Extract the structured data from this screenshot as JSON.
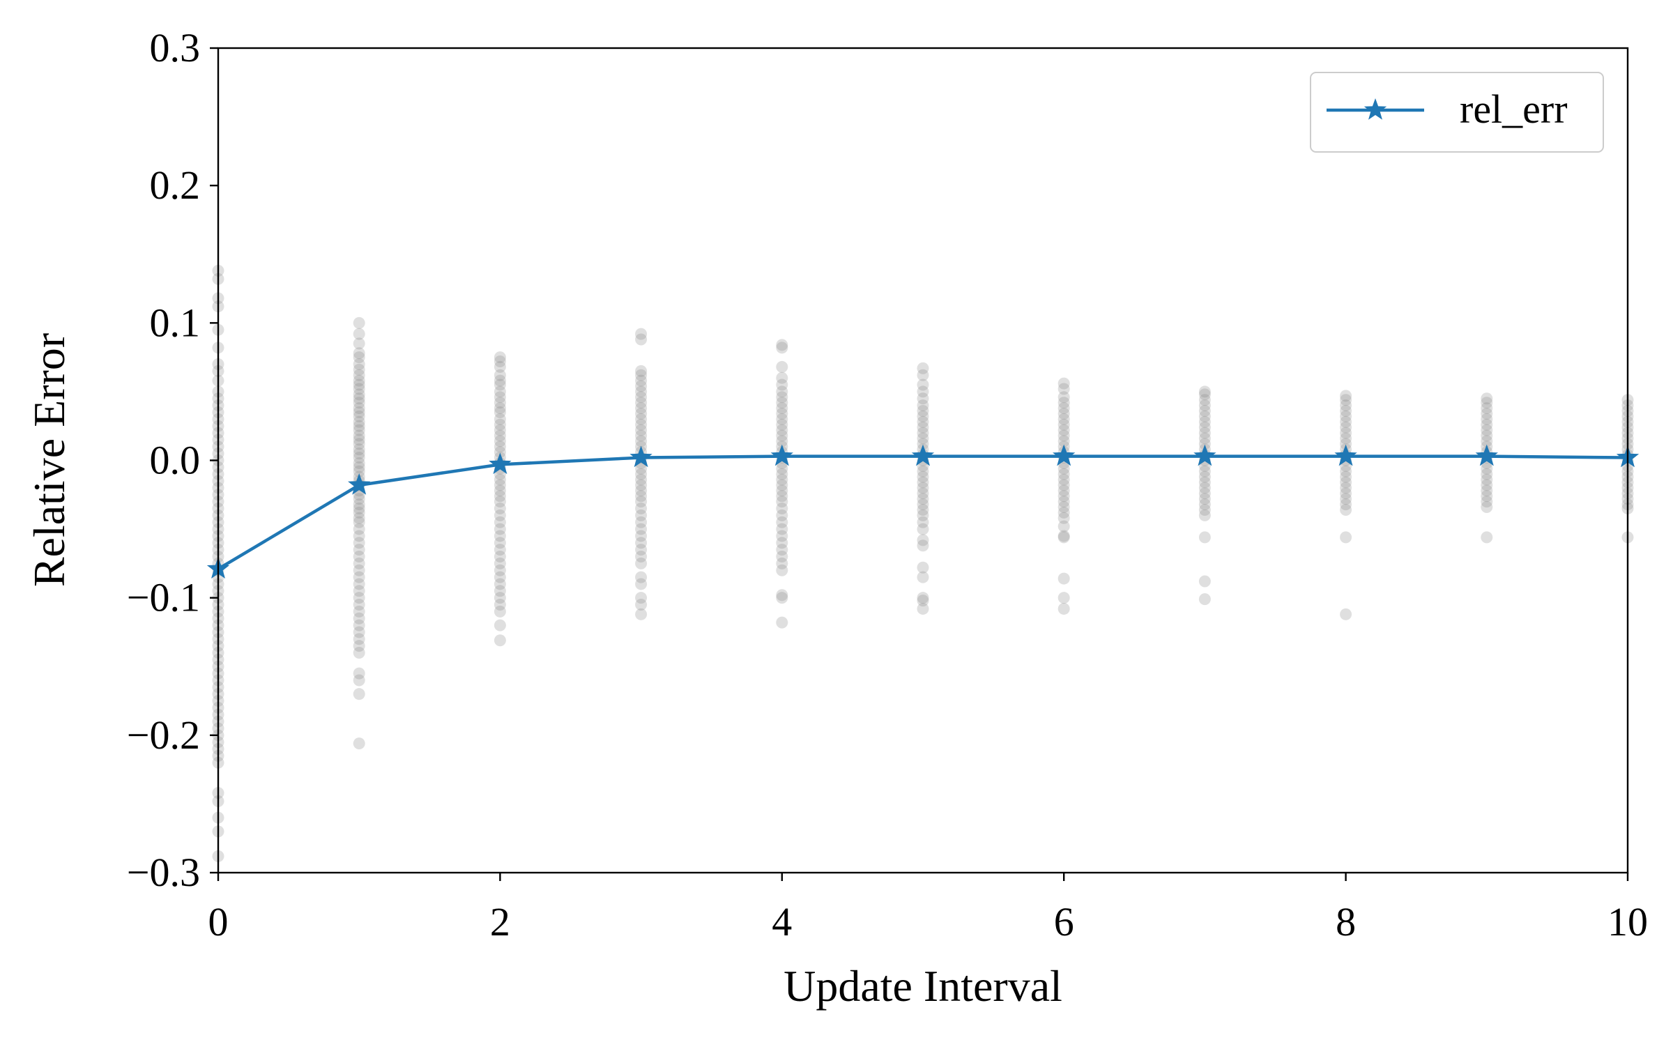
{
  "chart_data": {
    "type": "line",
    "title": "",
    "xlabel": "Update Interval",
    "ylabel": "Relative Error",
    "xlim": [
      0,
      10
    ],
    "ylim": [
      -0.3,
      0.3
    ],
    "xticks": [
      0,
      2,
      4,
      6,
      8,
      10
    ],
    "xtick_labels": [
      "0",
      "2",
      "4",
      "6",
      "8",
      "10"
    ],
    "yticks": [
      -0.3,
      -0.2,
      -0.1,
      0.0,
      0.1,
      0.2,
      0.3
    ],
    "ytick_labels": [
      "−0.3",
      "−0.2",
      "−0.1",
      "0.0",
      "0.1",
      "0.2",
      "0.3"
    ],
    "grid": false,
    "legend_position": "top-right",
    "series": [
      {
        "name": "rel_err",
        "marker": "star",
        "color": "#1f77b4",
        "x": [
          0,
          1,
          2,
          3,
          4,
          5,
          6,
          7,
          8,
          9,
          10
        ],
        "y": [
          -0.079,
          -0.018,
          -0.003,
          0.002,
          0.003,
          0.003,
          0.003,
          0.003,
          0.003,
          0.003,
          0.002
        ]
      }
    ],
    "scatter_samples": {
      "color": "#808080",
      "opacity": 0.25,
      "groups": [
        {
          "x": 0,
          "y": [
            0.138,
            0.132,
            0.118,
            0.112,
            0.095,
            0.082,
            0.07,
            0.065,
            0.058,
            0.05,
            0.045,
            0.04,
            0.035,
            0.03,
            0.025,
            0.02,
            0.015,
            0.01,
            0.005,
            0.0,
            -0.005,
            -0.01,
            -0.015,
            -0.02,
            -0.025,
            -0.03,
            -0.035,
            -0.04,
            -0.045,
            -0.05,
            -0.055,
            -0.06,
            -0.065,
            -0.07,
            -0.075,
            -0.08,
            -0.085,
            -0.09,
            -0.095,
            -0.1,
            -0.105,
            -0.11,
            -0.115,
            -0.12,
            -0.125,
            -0.13,
            -0.135,
            -0.14,
            -0.145,
            -0.15,
            -0.155,
            -0.16,
            -0.165,
            -0.17,
            -0.175,
            -0.18,
            -0.185,
            -0.19,
            -0.195,
            -0.2,
            -0.205,
            -0.21,
            -0.215,
            -0.22,
            -0.242,
            -0.248,
            -0.26,
            -0.27,
            -0.288
          ]
        },
        {
          "x": 1,
          "y": [
            0.1,
            0.092,
            0.085,
            0.078,
            0.075,
            0.07,
            0.066,
            0.062,
            0.058,
            0.055,
            0.052,
            0.048,
            0.045,
            0.042,
            0.038,
            0.035,
            0.032,
            0.028,
            0.025,
            0.022,
            0.018,
            0.015,
            0.012,
            0.008,
            0.005,
            0.002,
            -0.002,
            -0.005,
            -0.008,
            -0.012,
            -0.015,
            -0.018,
            -0.022,
            -0.025,
            -0.028,
            -0.032,
            -0.035,
            -0.038,
            -0.042,
            -0.045,
            -0.05,
            -0.055,
            -0.06,
            -0.065,
            -0.07,
            -0.075,
            -0.08,
            -0.085,
            -0.09,
            -0.095,
            -0.1,
            -0.105,
            -0.11,
            -0.115,
            -0.12,
            -0.125,
            -0.13,
            -0.135,
            -0.14,
            -0.155,
            -0.16,
            -0.17,
            -0.206
          ]
        },
        {
          "x": 2,
          "y": [
            0.075,
            0.072,
            0.068,
            0.062,
            0.058,
            0.055,
            0.05,
            0.046,
            0.042,
            0.038,
            0.035,
            0.03,
            0.026,
            0.022,
            0.018,
            0.014,
            0.01,
            0.006,
            0.002,
            -0.002,
            -0.006,
            -0.01,
            -0.014,
            -0.018,
            -0.022,
            -0.026,
            -0.03,
            -0.035,
            -0.04,
            -0.045,
            -0.05,
            -0.055,
            -0.06,
            -0.065,
            -0.07,
            -0.075,
            -0.08,
            -0.085,
            -0.09,
            -0.095,
            -0.1,
            -0.105,
            -0.11,
            -0.12,
            -0.131
          ]
        },
        {
          "x": 3,
          "y": [
            0.092,
            0.088,
            0.065,
            0.062,
            0.058,
            0.054,
            0.05,
            0.046,
            0.042,
            0.038,
            0.034,
            0.03,
            0.026,
            0.022,
            0.018,
            0.014,
            0.01,
            0.006,
            0.002,
            -0.002,
            -0.006,
            -0.01,
            -0.014,
            -0.018,
            -0.022,
            -0.026,
            -0.03,
            -0.035,
            -0.04,
            -0.045,
            -0.05,
            -0.055,
            -0.06,
            -0.065,
            -0.07,
            -0.075,
            -0.085,
            -0.09,
            -0.1,
            -0.105,
            -0.112
          ]
        },
        {
          "x": 4,
          "y": [
            0.084,
            0.082,
            0.068,
            0.06,
            0.055,
            0.05,
            0.046,
            0.042,
            0.038,
            0.034,
            0.03,
            0.026,
            0.022,
            0.018,
            0.014,
            0.01,
            0.006,
            0.002,
            -0.002,
            -0.006,
            -0.01,
            -0.014,
            -0.018,
            -0.022,
            -0.026,
            -0.03,
            -0.035,
            -0.04,
            -0.045,
            -0.05,
            -0.055,
            -0.06,
            -0.065,
            -0.07,
            -0.075,
            -0.08,
            -0.098,
            -0.1,
            -0.118
          ]
        },
        {
          "x": 5,
          "y": [
            0.067,
            0.062,
            0.055,
            0.05,
            0.045,
            0.04,
            0.036,
            0.032,
            0.028,
            0.024,
            0.02,
            0.016,
            0.012,
            0.008,
            0.004,
            0.0,
            -0.004,
            -0.008,
            -0.012,
            -0.016,
            -0.02,
            -0.024,
            -0.028,
            -0.032,
            -0.036,
            -0.04,
            -0.045,
            -0.05,
            -0.058,
            -0.062,
            -0.078,
            -0.085,
            -0.1,
            -0.102,
            -0.108
          ]
        },
        {
          "x": 6,
          "y": [
            0.056,
            0.052,
            0.046,
            0.042,
            0.038,
            0.034,
            0.03,
            0.026,
            0.022,
            0.018,
            0.014,
            0.01,
            0.006,
            0.002,
            -0.002,
            -0.006,
            -0.01,
            -0.014,
            -0.018,
            -0.022,
            -0.026,
            -0.03,
            -0.034,
            -0.038,
            -0.042,
            -0.048,
            -0.055,
            -0.056,
            -0.086,
            -0.1,
            -0.108
          ]
        },
        {
          "x": 7,
          "y": [
            0.05,
            0.048,
            0.044,
            0.04,
            0.036,
            0.032,
            0.028,
            0.024,
            0.02,
            0.016,
            0.012,
            0.008,
            0.004,
            0.0,
            -0.004,
            -0.008,
            -0.012,
            -0.016,
            -0.02,
            -0.024,
            -0.028,
            -0.032,
            -0.036,
            -0.04,
            -0.056,
            -0.088,
            -0.101
          ]
        },
        {
          "x": 8,
          "y": [
            0.047,
            0.044,
            0.04,
            0.036,
            0.032,
            0.028,
            0.024,
            0.02,
            0.016,
            0.012,
            0.008,
            0.004,
            0.0,
            -0.004,
            -0.008,
            -0.012,
            -0.016,
            -0.02,
            -0.024,
            -0.028,
            -0.032,
            -0.036,
            -0.056,
            -0.112
          ]
        },
        {
          "x": 9,
          "y": [
            0.045,
            0.042,
            0.038,
            0.034,
            0.03,
            0.026,
            0.022,
            0.018,
            0.014,
            0.01,
            0.006,
            0.002,
            -0.002,
            -0.006,
            -0.01,
            -0.014,
            -0.018,
            -0.022,
            -0.026,
            -0.03,
            -0.034,
            -0.056
          ]
        },
        {
          "x": 10,
          "y": [
            0.044,
            0.04,
            0.036,
            0.032,
            0.028,
            0.024,
            0.02,
            0.016,
            0.012,
            0.008,
            0.004,
            0.0,
            -0.004,
            -0.008,
            -0.012,
            -0.016,
            -0.02,
            -0.024,
            -0.028,
            -0.032,
            -0.035,
            -0.056
          ]
        }
      ]
    }
  }
}
